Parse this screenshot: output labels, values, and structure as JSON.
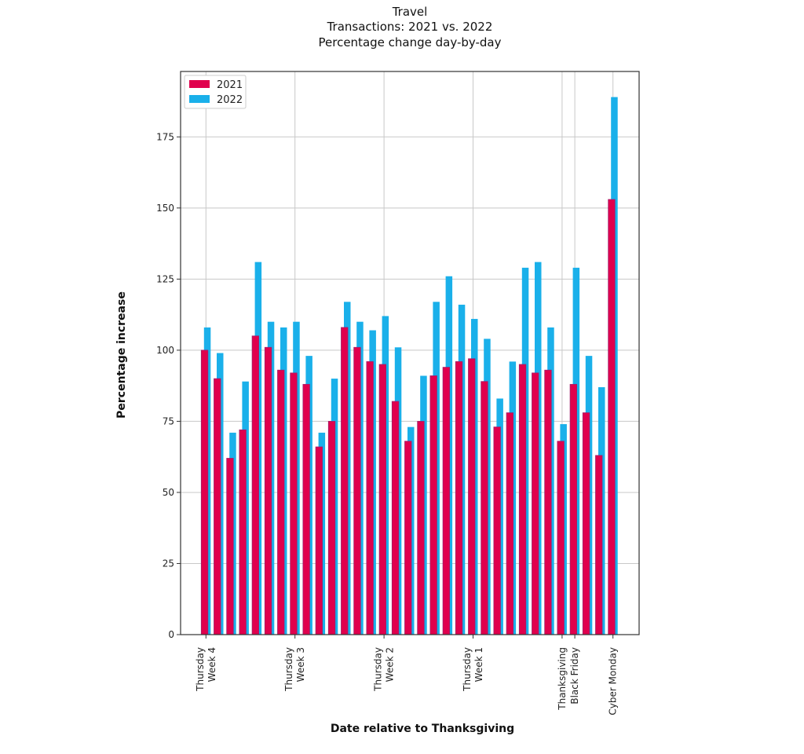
{
  "chart_data": {
    "type": "bar",
    "title": [
      "Travel",
      "Transactions: 2021 vs. 2022",
      "Percentage change day-by-day"
    ],
    "xlabel": "Date relative to Thanksgiving",
    "ylabel": "Percentage increase",
    "ylim": [
      0,
      198
    ],
    "yticks": [
      0,
      25,
      50,
      75,
      100,
      125,
      150,
      175
    ],
    "grid": true,
    "legend": "top-left",
    "colors": {
      "2021": "#e0004d",
      "2022": "#1ab0ea",
      "edge_2021": "#9e1f6c",
      "grid": "#c8c8c8",
      "axes": "#333333"
    },
    "series": [
      {
        "name": "2021",
        "values": [
          100,
          90,
          62,
          72,
          105,
          101,
          93,
          92,
          88,
          66,
          75,
          108,
          101,
          96,
          95,
          82,
          68,
          75,
          91,
          94,
          96,
          97,
          89,
          73,
          78,
          95,
          92,
          93,
          68,
          88,
          78,
          63,
          153
        ]
      },
      {
        "name": "2022",
        "values": [
          108,
          99,
          71,
          89,
          131,
          110,
          108,
          110,
          98,
          71,
          90,
          117,
          110,
          107,
          112,
          101,
          73,
          91,
          117,
          126,
          116,
          111,
          104,
          83,
          96,
          129,
          131,
          108,
          74,
          129,
          98,
          87,
          189
        ]
      }
    ],
    "xticks": [
      {
        "index": 0,
        "lines": [
          "Thursday",
          "Week 4"
        ]
      },
      {
        "index": 7,
        "lines": [
          "Thursday",
          "Week 3"
        ]
      },
      {
        "index": 14,
        "lines": [
          "Thursday",
          "Week 2"
        ]
      },
      {
        "index": 21,
        "lines": [
          "Thursday",
          "Week 1"
        ]
      },
      {
        "index": 28,
        "lines": [
          "Thanksgiving"
        ]
      },
      {
        "index": 29,
        "lines": [
          "Black Friday"
        ]
      },
      {
        "index": 32,
        "lines": [
          "Cyber Monday"
        ]
      }
    ]
  }
}
